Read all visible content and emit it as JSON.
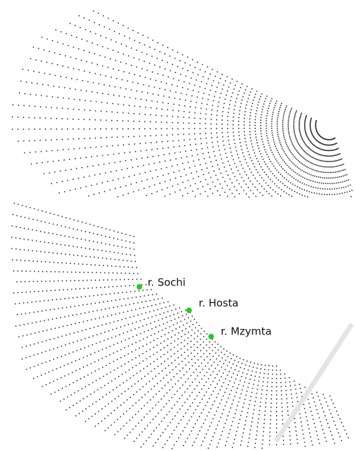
{
  "labels": [
    "r. Sochi",
    "r. Hosta",
    "r. Mzymta"
  ]
}
